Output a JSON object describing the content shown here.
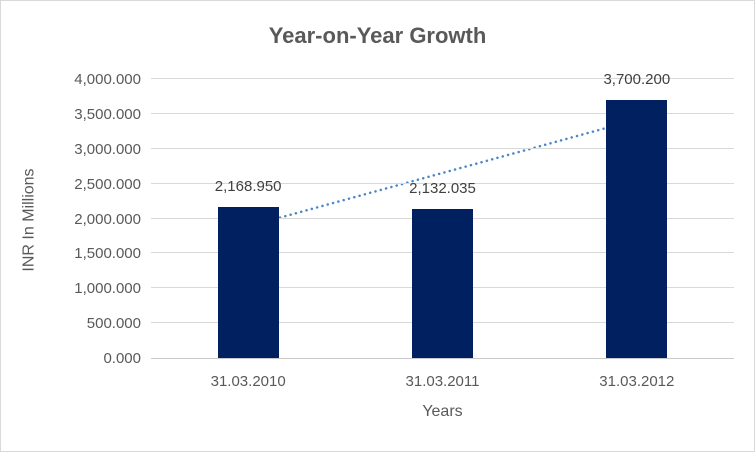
{
  "chart_data": {
    "type": "bar",
    "title": "Year-on-Year Growth",
    "xlabel": "Years",
    "ylabel": "INR In Millions",
    "categories": [
      "31.03.2010",
      "31.03.2011",
      "31.03.2012"
    ],
    "values": [
      2168.95,
      2132.035,
      3700.2
    ],
    "data_labels": [
      "2,168.950",
      "2,132.035",
      "3,700.200"
    ],
    "ylim": [
      0,
      4000
    ],
    "ytick_values": [
      0,
      500,
      1000,
      1500,
      2000,
      2500,
      3000,
      3500,
      4000
    ],
    "ytick_labels": [
      "0.000",
      "500.000",
      "1,000.000",
      "1,500.000",
      "2,000.000",
      "2,500.000",
      "3,000.000",
      "3,500.000",
      "4,000.000"
    ],
    "grid": true,
    "legend": "none",
    "bar_color": "#002060",
    "trendline": {
      "style": "dotted",
      "color": "#4a86c8",
      "start_value": 1901.44,
      "end_value": 3432.69
    },
    "colors": {
      "title": "#595959",
      "tick_label": "#595959",
      "data_label": "#404040",
      "axis_title": "#595959",
      "gridline": "#d9d9d9",
      "axis_line": "#c9c9c9",
      "background": "#ffffff",
      "border": "#d9d9d9"
    }
  }
}
